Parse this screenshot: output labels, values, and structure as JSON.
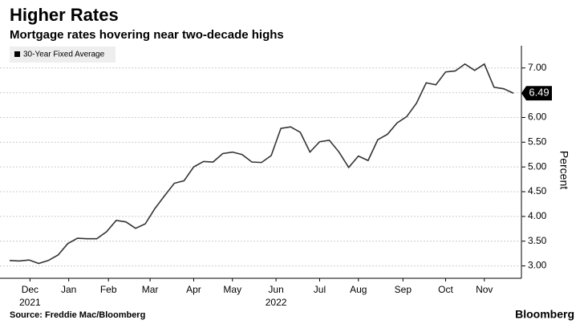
{
  "chart_data": {
    "type": "line",
    "title": "Higher Rates",
    "subtitle": "Mortgage rates hovering near two-decade highs",
    "source": "Source: Freddie Mac/Bloomberg",
    "brand": "Bloomberg",
    "y_label": "Percent",
    "x": [
      0,
      1,
      2,
      3,
      4,
      5,
      6,
      7,
      8,
      9,
      10,
      11,
      12,
      13,
      14,
      15,
      16,
      17,
      18,
      19,
      20,
      21,
      22,
      23,
      24,
      25,
      26,
      27,
      28,
      29,
      30,
      31,
      32,
      33,
      34,
      35,
      36,
      37,
      38,
      39,
      40,
      41,
      42,
      43,
      44,
      45,
      46,
      47,
      48,
      49,
      50,
      51,
      52
    ],
    "series": [
      {
        "name": "30-Year Fixed Average",
        "color": "#333333",
        "values": [
          3.11,
          3.1,
          3.12,
          3.05,
          3.11,
          3.22,
          3.45,
          3.56,
          3.55,
          3.55,
          3.69,
          3.92,
          3.89,
          3.76,
          3.85,
          4.16,
          4.42,
          4.67,
          4.72,
          5.0,
          5.11,
          5.1,
          5.27,
          5.3,
          5.25,
          5.1,
          5.09,
          5.23,
          5.78,
          5.81,
          5.7,
          5.3,
          5.51,
          5.54,
          5.3,
          4.99,
          5.22,
          5.13,
          5.55,
          5.66,
          5.89,
          6.02,
          6.29,
          6.7,
          6.66,
          6.92,
          6.94,
          7.08,
          6.95,
          7.08,
          6.61,
          6.58,
          6.49
        ]
      }
    ],
    "xlim": [
      0,
      52
    ],
    "xticks": [
      {
        "value": 2.1,
        "label": "Dec"
      },
      {
        "value": 6.1,
        "label": "Jan"
      },
      {
        "value": 10.2,
        "label": "Feb"
      },
      {
        "value": 14.5,
        "label": "Mar"
      },
      {
        "value": 19,
        "label": "Apr"
      },
      {
        "value": 23,
        "label": "May"
      },
      {
        "value": 27.5,
        "label": "Jun"
      },
      {
        "value": 32,
        "label": "Jul"
      },
      {
        "value": 36,
        "label": "Aug"
      },
      {
        "value": 40.6,
        "label": "Sep"
      },
      {
        "value": 45,
        "label": "Oct"
      },
      {
        "value": 49,
        "label": "Nov"
      }
    ],
    "x_year_labels": [
      {
        "value": 2.1,
        "label": "2021"
      },
      {
        "value": 27.5,
        "label": "2022"
      }
    ],
    "ylim": [
      2.75,
      7.45
    ],
    "yticks": [
      {
        "value": 3,
        "label": "3.00"
      },
      {
        "value": 3.5,
        "label": "3.50"
      },
      {
        "value": 4,
        "label": "4.00"
      },
      {
        "value": 4.5,
        "label": "4.50"
      },
      {
        "value": 5,
        "label": "5.00"
      },
      {
        "value": 5.5,
        "label": "5.50"
      },
      {
        "value": 6,
        "label": "6.00"
      },
      {
        "value": 6.5,
        "label": "6.50"
      },
      {
        "value": 7,
        "label": "7.00"
      }
    ],
    "grid": true
  }
}
